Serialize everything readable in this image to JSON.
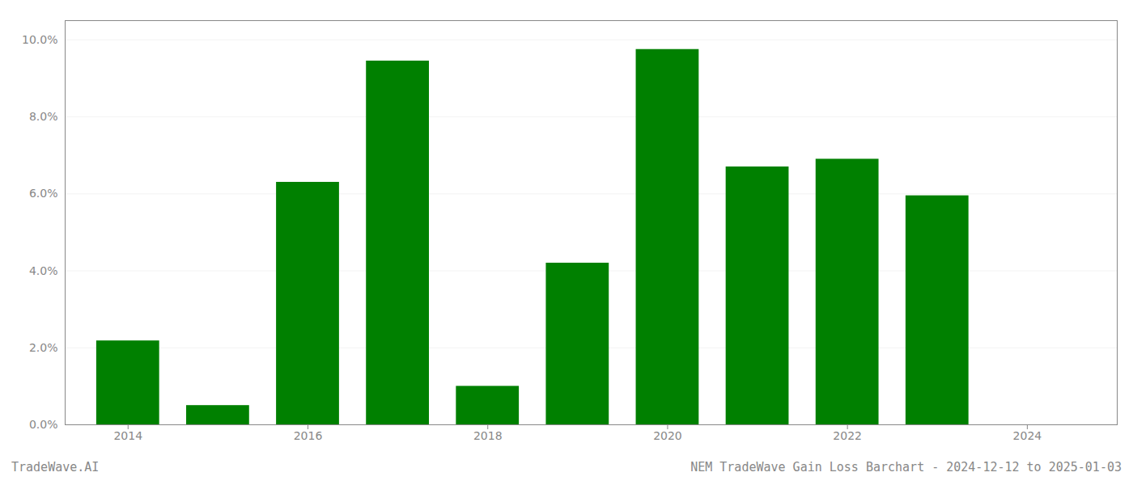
{
  "chart_data": {
    "type": "bar",
    "title": "NEM TradeWave Gain Loss Barchart - 2024-12-12 to 2025-01-03",
    "annotations": [
      "TradeWave.AI"
    ],
    "x": [
      2014,
      2015,
      2016,
      2017,
      2018,
      2019,
      2020,
      2021,
      2022,
      2023
    ],
    "values": [
      0.0218,
      0.005,
      0.063,
      0.0945,
      0.01,
      0.042,
      0.0975,
      0.067,
      0.069,
      0.0595
    ],
    "color": "#008000",
    "xlim": [
      2013.3,
      2025.0
    ],
    "xticks": [
      2014,
      2016,
      2018,
      2020,
      2022,
      2024
    ],
    "ylim": [
      0,
      0.105
    ],
    "yticks": [
      {
        "value": 0.0,
        "label": "0.0%"
      },
      {
        "value": 0.02,
        "label": "2.0%"
      },
      {
        "value": 0.04,
        "label": "4.0%"
      },
      {
        "value": 0.06,
        "label": "6.0%"
      },
      {
        "value": 0.08,
        "label": "8.0%"
      },
      {
        "value": 0.1,
        "label": "10.0%"
      }
    ],
    "grid": true
  }
}
